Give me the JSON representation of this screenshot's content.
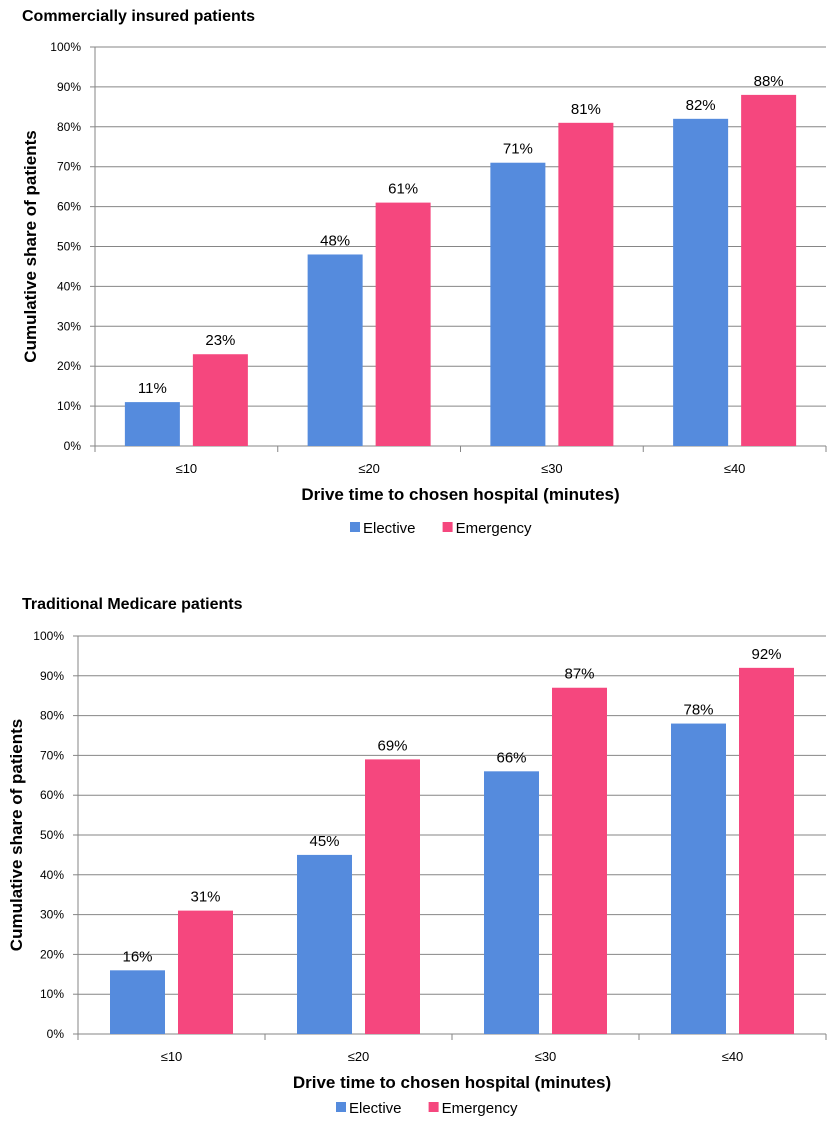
{
  "chart_data": [
    {
      "type": "bar",
      "title": "Commercially insured patients",
      "xlabel": "Drive time to chosen hospital (minutes)",
      "ylabel": "Cumulative share of patients",
      "categories": [
        "≤10",
        "≤20",
        "≤30",
        "≤40"
      ],
      "series": [
        {
          "name": "Elective",
          "values": [
            11,
            48,
            71,
            82
          ],
          "labels": [
            "11%",
            "48%",
            "71%",
            "82%"
          ],
          "color": "#558BDD"
        },
        {
          "name": "Emergency",
          "values": [
            23,
            61,
            81,
            88
          ],
          "labels": [
            "23%",
            "61%",
            "81%",
            "88%"
          ],
          "color": "#F5477E"
        }
      ],
      "ylim": [
        0,
        100
      ],
      "yticks": [
        "0%",
        "10%",
        "20%",
        "30%",
        "40%",
        "50%",
        "60%",
        "70%",
        "80%",
        "90%",
        "100%"
      ],
      "grid": true,
      "legend_position": "bottom"
    },
    {
      "type": "bar",
      "title": "Traditional Medicare patients",
      "xlabel": "Drive time to chosen hospital (minutes)",
      "ylabel": "Cumulative share of patients",
      "categories": [
        "≤10",
        "≤20",
        "≤30",
        "≤40"
      ],
      "series": [
        {
          "name": "Elective",
          "values": [
            16,
            45,
            66,
            78
          ],
          "labels": [
            "16%",
            "45%",
            "66%",
            "78%"
          ],
          "color": "#558BDD"
        },
        {
          "name": "Emergency",
          "values": [
            31,
            69,
            87,
            92
          ],
          "labels": [
            "31%",
            "69%",
            "87%",
            "92%"
          ],
          "color": "#F5477E"
        }
      ],
      "ylim": [
        0,
        100
      ],
      "yticks": [
        "0%",
        "10%",
        "20%",
        "30%",
        "40%",
        "50%",
        "60%",
        "70%",
        "80%",
        "90%",
        "100%"
      ],
      "grid": true,
      "legend_position": "bottom"
    }
  ]
}
